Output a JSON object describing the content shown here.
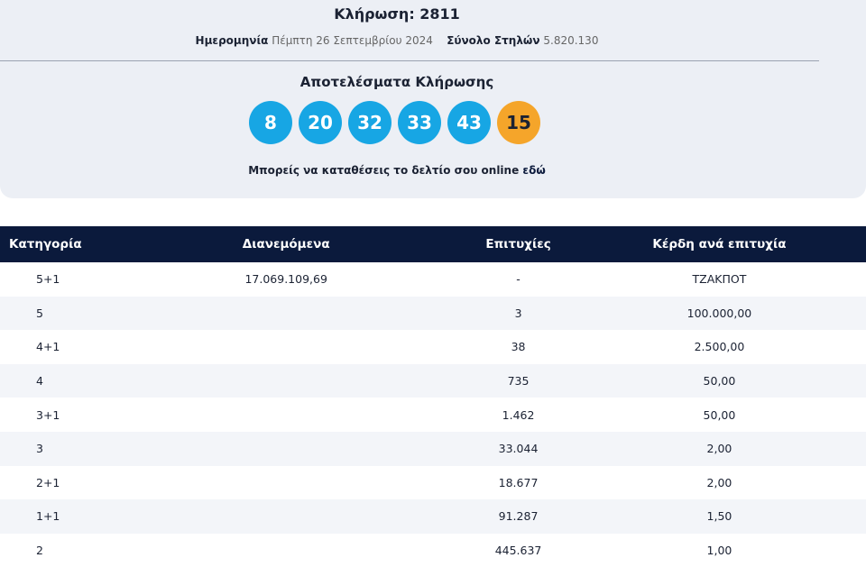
{
  "header": {
    "title": "Κλήρωση: 2811",
    "date_label": "Ημερομηνία",
    "date": "Πέμπτη 26 Σεπτεμβρίου 2024",
    "columns_label": "Σύνολο Στηλών",
    "columns": "5.820.130"
  },
  "results": {
    "title": "Αποτελέσματα Κλήρωσης",
    "numbers": [
      "8",
      "20",
      "32",
      "33",
      "43"
    ],
    "bonus": "15",
    "online_text": "Μπορείς να καταθέσεις το δελτίο σου online",
    "online_link": "εδώ"
  },
  "table": {
    "headers": [
      "Κατηγορία",
      "Διανεμόμενα",
      "Επιτυχίες",
      "Κέρδη ανά επιτυχία"
    ],
    "rows": [
      {
        "category": "5+1",
        "pool": "17.069.109,69",
        "winners": "-",
        "prize": "ΤΖΑΚΠΟΤ"
      },
      {
        "category": "5",
        "winners": "3",
        "prize": "100.000,00"
      },
      {
        "category": "4+1",
        "winners": "38",
        "prize": "2.500,00"
      },
      {
        "category": "4",
        "winners": "735",
        "prize": "50,00"
      },
      {
        "category": "3+1",
        "winners": "1.462",
        "prize": "50,00"
      },
      {
        "category": "3",
        "winners": "33.044",
        "prize": "2,00"
      },
      {
        "category": "2+1",
        "winners": "18.677",
        "prize": "2,00"
      },
      {
        "category": "1+1",
        "winners": "91.287",
        "prize": "1,50"
      },
      {
        "category": "2",
        "winners": "445.637",
        "prize": "1,00"
      }
    ]
  }
}
